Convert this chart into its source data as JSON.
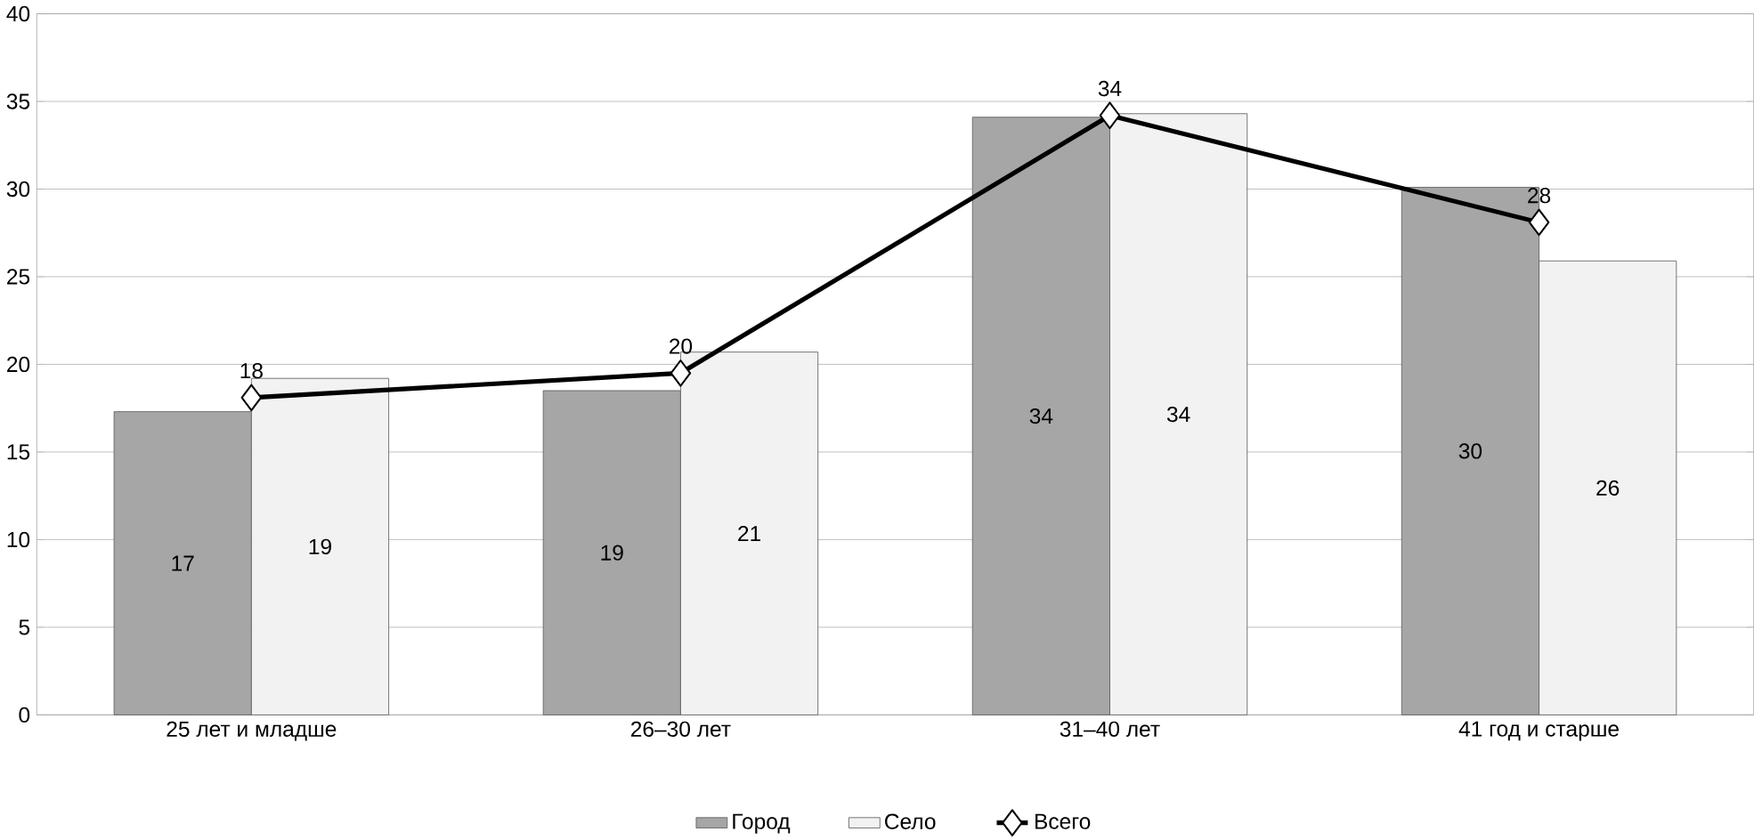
{
  "chart_data": {
    "type": "bar",
    "categories": [
      "25 лет и младше",
      "26–30 лет",
      "31–40 лет",
      "41 год и старше"
    ],
    "series": [
      {
        "name": "Город",
        "color": "#a6a6a6",
        "values": [
          17.3,
          18.5,
          34.1,
          30.1
        ],
        "value_labels": [
          "17",
          "19",
          "34",
          "30"
        ]
      },
      {
        "name": "Село",
        "color": "#f2f2f2",
        "values": [
          19.2,
          20.7,
          34.3,
          25.9
        ],
        "value_labels": [
          "19",
          "21",
          "34",
          "26"
        ]
      },
      {
        "name": "Всего",
        "type": "line",
        "color": "#000000",
        "marker": "diamond",
        "values": [
          18.1,
          19.5,
          34.2,
          28.1
        ],
        "value_labels": [
          "18",
          "20",
          "34",
          "28"
        ]
      }
    ],
    "ylim": [
      0,
      40
    ],
    "yticks": [
      0,
      5,
      10,
      15,
      20,
      25,
      30,
      35,
      40
    ],
    "grid": "y",
    "legend": "bottom"
  }
}
